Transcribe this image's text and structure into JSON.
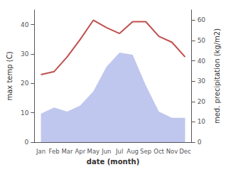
{
  "chart_data": {
    "type": "line",
    "categories": [
      "Jan",
      "Feb",
      "Mar",
      "Apr",
      "May",
      "Jun",
      "Jul",
      "Aug",
      "Sep",
      "Oct",
      "Nov",
      "Dec"
    ],
    "series": [
      {
        "type": "area",
        "axis": "y2",
        "color": "#aab4e8",
        "values": [
          14,
          17,
          15,
          18,
          25,
          37,
          44,
          43,
          28,
          15,
          12,
          12
        ]
      },
      {
        "type": "line",
        "color": "#c0504d",
        "values": [
          23,
          24,
          29,
          35,
          41.5,
          39,
          37,
          41,
          41,
          36,
          34,
          29
        ]
      }
    ],
    "xlabel": "date (month)",
    "ylabel": "max temp (C)",
    "y2label": "med. precipitation (kg/m2)",
    "ylim": [
      0,
      45
    ],
    "yticks": [
      0,
      10,
      20,
      30,
      40
    ],
    "y2lim": [
      0,
      65
    ],
    "y2ticks": [
      0,
      10,
      20,
      30,
      40,
      50,
      60
    ],
    "grid": false
  }
}
